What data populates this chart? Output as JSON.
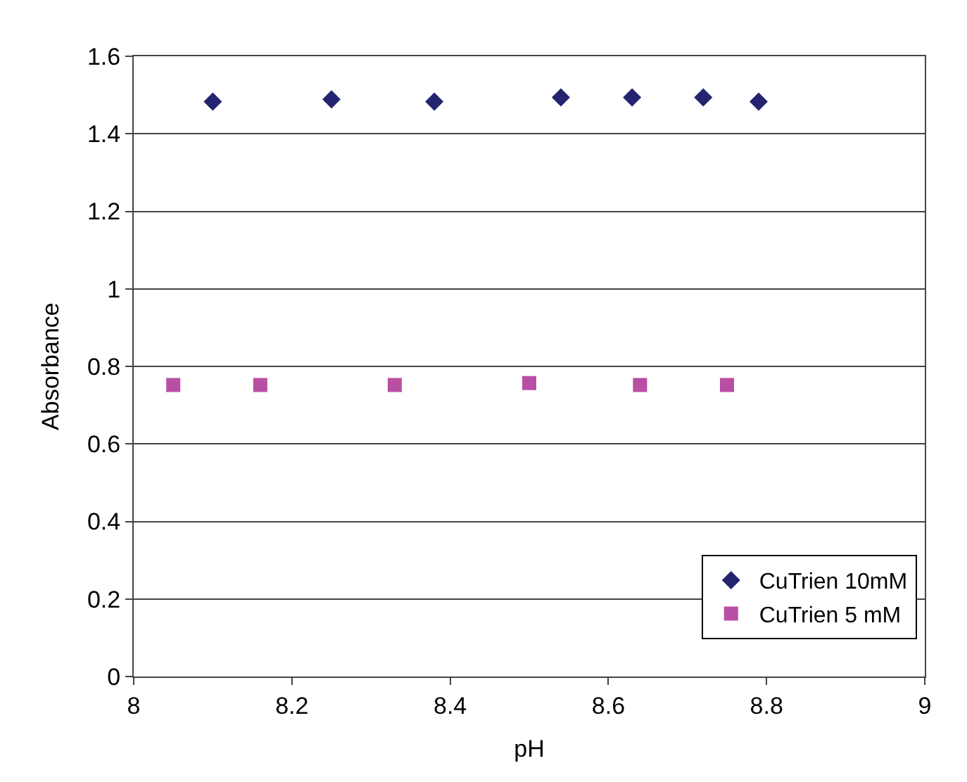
{
  "chart_data": {
    "type": "scatter",
    "xlabel": "pH",
    "ylabel": "Absorbance",
    "xlim": [
      8,
      9
    ],
    "xticks": [
      8,
      8.2,
      8.4,
      8.6,
      8.8,
      9
    ],
    "ylim": [
      0,
      1.6
    ],
    "yticks": [
      0,
      0.2,
      0.4,
      0.6,
      0.8,
      1,
      1.2,
      1.4,
      1.6
    ],
    "grid": "y",
    "legend": "bottom right",
    "series": [
      {
        "name": "CuTrien 10mM",
        "color": "#252470",
        "marker": "diamond",
        "x": [
          8.1,
          8.25,
          8.38,
          8.54,
          8.63,
          8.72,
          8.79
        ],
        "values": [
          1.483,
          1.489,
          1.483,
          1.494,
          1.494,
          1.494,
          1.483
        ]
      },
      {
        "name": "CuTrien 5 mM",
        "color": "#b94fa5",
        "marker": "square",
        "x": [
          8.05,
          8.16,
          8.33,
          8.5,
          8.64,
          8.75
        ],
        "values": [
          0.752,
          0.752,
          0.752,
          0.757,
          0.752,
          0.752
        ]
      }
    ]
  }
}
